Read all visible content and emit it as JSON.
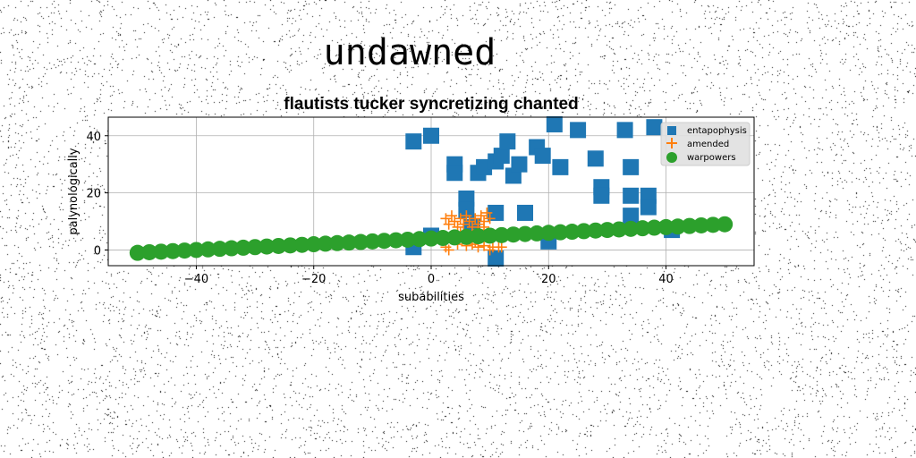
{
  "figure_title": "undawned",
  "chart_data": {
    "type": "scatter",
    "title": "flautists tucker syncretizing chanted",
    "xlabel": "subabilities",
    "ylabel": "palynologically",
    "xlim": [
      -55,
      55
    ],
    "ylim": [
      -5.5,
      46.5
    ],
    "xticks": [
      -40,
      -20,
      0,
      20,
      40
    ],
    "yticks": [
      0,
      20,
      40
    ],
    "grid": true,
    "legend_position": "top-right",
    "series": [
      {
        "name": "entapophysis",
        "marker": "square",
        "color": "#1f77b4",
        "points": [
          [
            -3,
            38
          ],
          [
            0,
            40
          ],
          [
            4,
            30
          ],
          [
            4,
            27
          ],
          [
            6,
            18
          ],
          [
            6,
            14
          ],
          [
            8,
            27
          ],
          [
            9,
            29
          ],
          [
            11,
            31
          ],
          [
            12,
            33
          ],
          [
            13,
            38
          ],
          [
            14,
            26
          ],
          [
            15,
            30
          ],
          [
            16,
            13
          ],
          [
            18,
            36
          ],
          [
            19,
            33
          ],
          [
            21,
            44
          ],
          [
            22,
            29
          ],
          [
            25,
            42
          ],
          [
            28,
            32
          ],
          [
            29,
            22
          ],
          [
            29,
            19
          ],
          [
            33,
            42
          ],
          [
            34,
            29
          ],
          [
            34,
            19
          ],
          [
            34,
            12
          ],
          [
            37,
            19
          ],
          [
            37,
            15
          ],
          [
            38,
            43
          ],
          [
            11,
            13
          ],
          [
            7,
            8
          ],
          [
            -3,
            1
          ],
          [
            0,
            5
          ],
          [
            11,
            -3
          ],
          [
            20,
            3
          ],
          [
            41,
            7
          ]
        ]
      },
      {
        "name": "amended",
        "marker": "plus",
        "color": "#ff7f0e",
        "points": [
          [
            2.5,
            11
          ],
          [
            3,
            9
          ],
          [
            3.5,
            12
          ],
          [
            4,
            10
          ],
          [
            4.5,
            8
          ],
          [
            5,
            11
          ],
          [
            5.5,
            9
          ],
          [
            6,
            12
          ],
          [
            6.5,
            10
          ],
          [
            7,
            8
          ],
          [
            7.5,
            11
          ],
          [
            8,
            9
          ],
          [
            8.5,
            12
          ],
          [
            9,
            10
          ],
          [
            9.5,
            13
          ],
          [
            10,
            11
          ],
          [
            5,
            6
          ],
          [
            6.5,
            5
          ],
          [
            8,
            7
          ],
          [
            9,
            8
          ],
          [
            2.5,
            1
          ],
          [
            3,
            0
          ],
          [
            4.5,
            2
          ],
          [
            6,
            1.5
          ],
          [
            7,
            2
          ],
          [
            8,
            1
          ],
          [
            9,
            1.5
          ],
          [
            10,
            0
          ],
          [
            10.5,
            1
          ],
          [
            11.5,
            1
          ],
          [
            12,
            1
          ],
          [
            7.5,
            3
          ]
        ]
      },
      {
        "name": "warpowers",
        "marker": "circle",
        "color": "#2ca02c",
        "x_start": -50,
        "x_end": 50,
        "count": 51,
        "y_start": -1,
        "y_end": 9
      }
    ]
  }
}
